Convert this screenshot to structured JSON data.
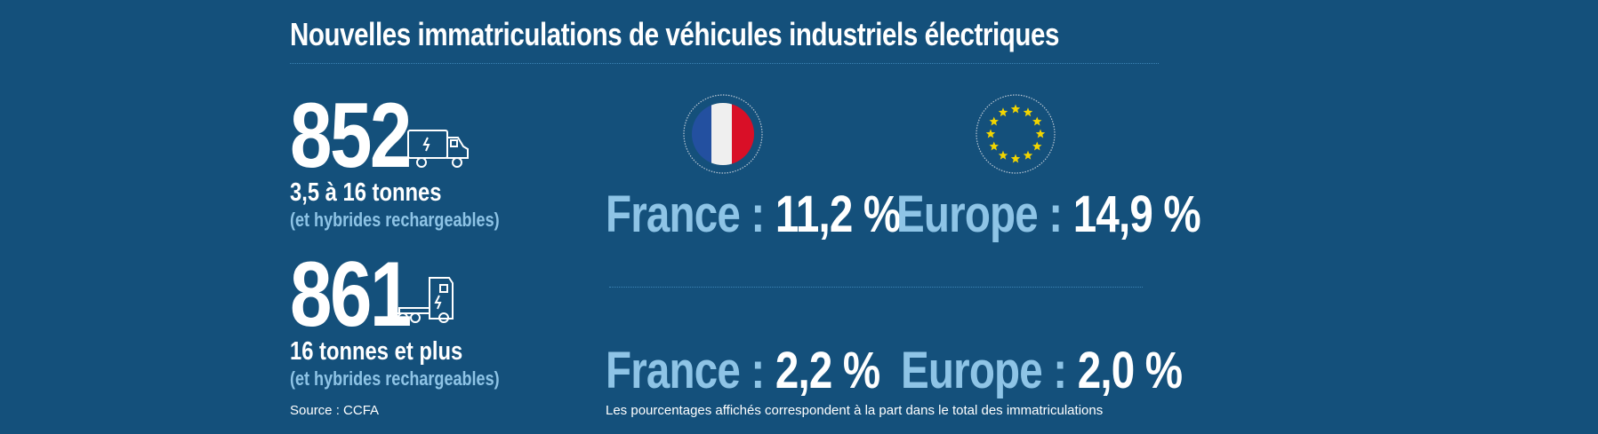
{
  "title": "Nouvelles immatriculations de véhicules industriels électriques",
  "segments": [
    {
      "count": "852",
      "weight": "3,5 à 16 tonnes",
      "note": "(et hybrides rechargeables)",
      "icon": "electric-van-icon",
      "france_label": "France :",
      "france_value": "11,2 %",
      "europe_label": "Europe :",
      "europe_value": "14,9 %"
    },
    {
      "count": "861",
      "weight": "16 tonnes et plus",
      "note": "(et hybrides rechargeables)",
      "icon": "electric-tractor-truck-icon",
      "france_label": "France :",
      "france_value": "2,2 %",
      "europe_label": "Europe :",
      "europe_value": "2,0 %"
    }
  ],
  "flags": {
    "france": "france-flag-icon",
    "europe": "eu-flag-icon"
  },
  "source": "Source : CCFA",
  "footnote": "Les pourcentages affichés correspondent à la part dans le total des immatriculations",
  "colors": {
    "background": "#14507b",
    "accent": "#8ec4e6",
    "france_blue": "#2350a0",
    "france_red": "#d90f27",
    "eu_star": "#f2d500"
  }
}
